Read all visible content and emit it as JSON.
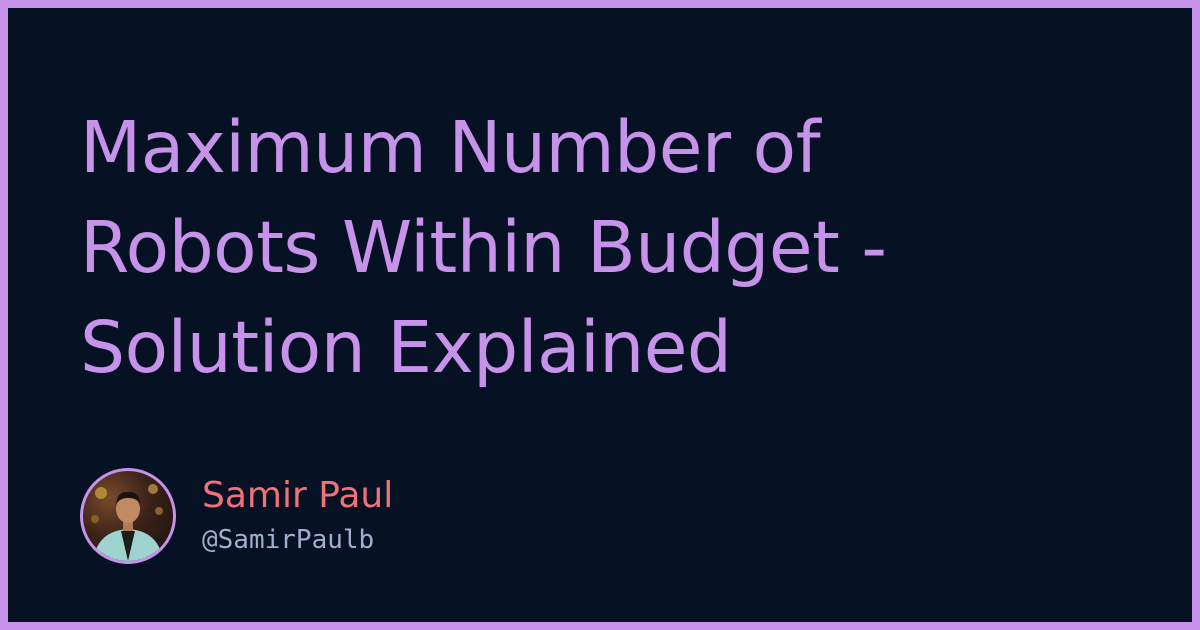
{
  "title_lines": [
    "Maximum Number of",
    "Robots Within Budget -",
    "Solution Explained"
  ],
  "author": {
    "name": "Samir Paul",
    "handle": "@SamirPaulb",
    "avatar_icon": "person-photo-icon"
  },
  "colors": {
    "background": "#061124",
    "border": "#c792ea",
    "title": "#c792ea",
    "name": "#f07178",
    "handle": "#a6accd"
  }
}
